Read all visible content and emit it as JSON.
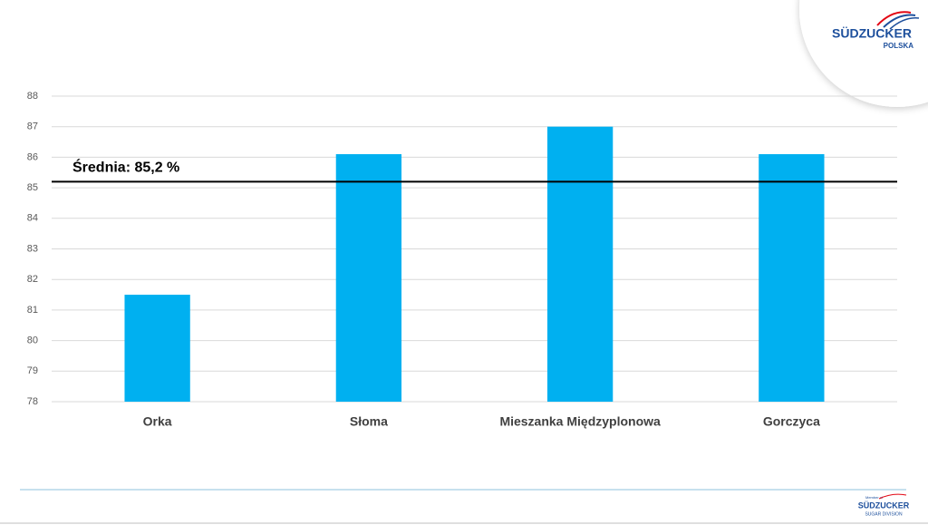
{
  "chart_data": {
    "type": "bar",
    "categories": [
      "Orka",
      "Słoma",
      "Mieszanka Międzyplonowa",
      "Gorczyca"
    ],
    "values": [
      81.5,
      86.1,
      87.0,
      86.1
    ],
    "color": "#00b0f0",
    "ylim": [
      78,
      88
    ],
    "yticks": [
      78,
      79,
      80,
      81,
      82,
      83,
      84,
      85,
      86,
      87,
      88
    ],
    "grid": true,
    "reference_line": {
      "value": 85.2,
      "label": "Średnia: 85,2 %"
    }
  },
  "logo": {
    "name": "SÜDZUCKER",
    "sub": "POLSKA"
  },
  "footer_logo": {
    "member": "Member of",
    "name": "SÜDZUCKER",
    "sub": "SUGAR DIVISION"
  }
}
